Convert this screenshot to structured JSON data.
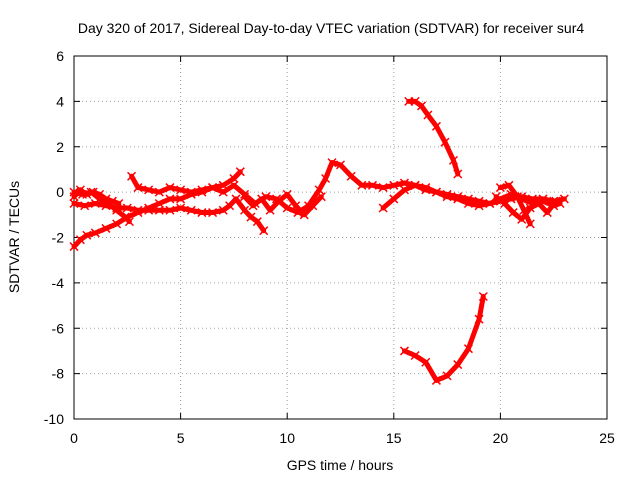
{
  "chart_data": {
    "type": "scatter",
    "title": "Day 320 of 2017, Sidereal Day-to-day VTEC variation (SDTVAR) for receiver sur4",
    "xlabel": "GPS time / hours",
    "ylabel": "SDTVAR / TECUs",
    "xlim": [
      0,
      25
    ],
    "ylim": [
      -10,
      6
    ],
    "xticks": [
      "0",
      "5",
      "10",
      "15",
      "20",
      "25"
    ],
    "yticks": [
      "6",
      "4",
      "2",
      "0",
      "-2",
      "-4",
      "-6",
      "-8",
      "-10"
    ],
    "grid": true,
    "marker": "cross",
    "color": "#ff0000",
    "series": [
      {
        "x": [
          0.0,
          0.3,
          0.6,
          1.0,
          1.5,
          2.0,
          2.5,
          3.0,
          3.5,
          4.0,
          4.5,
          5.0,
          5.5,
          6.0,
          6.5,
          7.0,
          7.5,
          7.8
        ],
        "y": [
          -2.4,
          -2.1,
          -1.9,
          -1.8,
          -1.6,
          -1.4,
          -1.1,
          -0.9,
          -0.7,
          -0.5,
          -0.3,
          -0.3,
          -0.1,
          0.0,
          0.2,
          0.3,
          0.6,
          0.9
        ]
      },
      {
        "x": [
          0.0,
          0.5,
          1.0,
          1.5,
          2.0,
          2.5,
          3.0,
          3.5,
          4.0,
          4.5,
          5.0,
          5.5,
          6.0,
          6.5,
          7.0,
          7.3,
          7.6,
          8.0,
          8.3,
          8.6,
          8.9
        ],
        "y": [
          -0.5,
          -0.6,
          -0.5,
          -0.6,
          -0.7,
          -0.7,
          -0.8,
          -0.8,
          -0.8,
          -0.8,
          -0.7,
          -0.8,
          -0.9,
          -0.9,
          -0.8,
          -0.6,
          -0.3,
          -0.8,
          -1.1,
          -1.3,
          -1.7
        ]
      },
      {
        "x": [
          0.0,
          0.4,
          0.8,
          1.2,
          1.6,
          2.0,
          2.4,
          2.6
        ],
        "y": [
          0.0,
          -0.1,
          0.0,
          -0.3,
          -0.5,
          -0.8,
          -1.1,
          -1.3
        ]
      },
      {
        "x": [
          0.0,
          0.3,
          0.6,
          0.9,
          1.2,
          1.5,
          1.8,
          2.1
        ],
        "y": [
          -0.2,
          0.1,
          -0.1,
          0.0,
          -0.1,
          -0.3,
          -0.4,
          -0.5
        ]
      },
      {
        "x": [
          2.7,
          3.0,
          3.5,
          4.0,
          4.5,
          5.0,
          5.5,
          6.0,
          6.5,
          7.0,
          7.5,
          8.0,
          8.5,
          9.0,
          9.5,
          10.0,
          10.5,
          11.0,
          11.5,
          11.8,
          12.1,
          12.5,
          13.0,
          13.5,
          14.0,
          14.5,
          15.0,
          15.5,
          16.0,
          16.5,
          17.0,
          17.5,
          18.0,
          18.5,
          19.0,
          19.5,
          20.0,
          20.5,
          21.0,
          21.5,
          22.0,
          22.5,
          23.0
        ],
        "y": [
          0.7,
          0.2,
          0.1,
          0.0,
          0.2,
          0.1,
          0.0,
          0.1,
          0.2,
          0.0,
          0.3,
          -0.1,
          -0.5,
          -0.2,
          -0.3,
          -0.7,
          -0.9,
          -0.6,
          0.1,
          0.6,
          1.3,
          1.2,
          0.7,
          0.3,
          0.3,
          0.2,
          0.3,
          0.4,
          0.3,
          0.2,
          0.0,
          -0.1,
          -0.2,
          -0.3,
          -0.4,
          -0.5,
          -0.4,
          -0.3,
          -0.2,
          -0.3,
          -0.3,
          -0.4,
          -0.3
        ]
      },
      {
        "x": [
          8.0,
          8.4,
          8.8,
          9.2,
          9.6,
          10.0,
          10.4,
          10.8,
          11.2,
          11.6
        ],
        "y": [
          -0.2,
          -0.6,
          -0.3,
          -0.8,
          -0.4,
          -0.1,
          -0.6,
          -1.0,
          -0.6,
          -0.2
        ]
      },
      {
        "x": [
          14.5,
          15.0,
          15.5,
          16.0,
          16.5,
          17.0,
          17.5,
          18.0,
          18.5,
          19.0,
          19.5,
          20.0,
          20.5,
          21.0,
          21.5,
          22.0,
          22.5,
          22.8
        ],
        "y": [
          -0.7,
          -0.3,
          0.1,
          0.3,
          0.1,
          0.0,
          -0.2,
          -0.3,
          -0.5,
          -0.6,
          -0.5,
          -0.3,
          -0.1,
          -0.3,
          -0.5,
          -0.4,
          -0.6,
          -0.5
        ]
      },
      {
        "x": [
          19.8,
          20.2,
          20.6,
          21.0,
          21.4,
          21.8,
          22.2,
          22.6
        ],
        "y": [
          -0.2,
          -0.5,
          -0.9,
          -1.2,
          -0.7,
          -0.5,
          -0.9,
          -0.4
        ]
      },
      {
        "x": [
          20.0,
          20.4,
          20.8,
          21.1,
          21.4
        ],
        "y": [
          0.2,
          0.3,
          -0.2,
          -0.8,
          -1.4
        ]
      },
      {
        "x": [
          15.7,
          16.0,
          16.3,
          16.6,
          17.0,
          17.4,
          17.8,
          18.0
        ],
        "y": [
          4.0,
          4.0,
          3.8,
          3.4,
          2.9,
          2.2,
          1.4,
          0.8
        ]
      },
      {
        "x": [
          15.5,
          16.0,
          16.5,
          17.0,
          17.5,
          18.0,
          18.5,
          19.0,
          19.2
        ],
        "y": [
          -7.0,
          -7.2,
          -7.5,
          -8.3,
          -8.1,
          -7.6,
          -6.9,
          -5.6,
          -4.6
        ]
      }
    ]
  }
}
